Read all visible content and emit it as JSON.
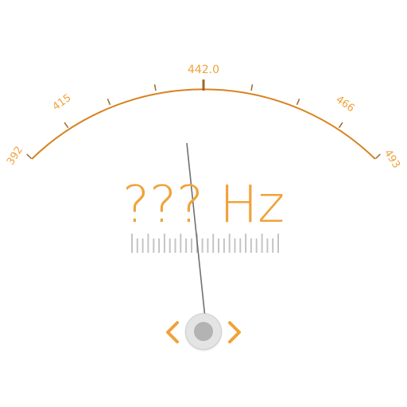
{
  "colors": {
    "accent": "#f0a23a",
    "scale_arc": "#d9821f",
    "needle": "#707070",
    "ruler": "#c4c4c4",
    "knob": "#e4e4e4",
    "knob_center": "#b3b3b3"
  },
  "gauge": {
    "labels": [
      {
        "value": "392",
        "angle": -55
      },
      {
        "value": "415",
        "angle": -36
      },
      {
        "value": "442.0",
        "angle": 0
      },
      {
        "value": "466",
        "angle": 36
      },
      {
        "value": "493",
        "angle": 55
      }
    ],
    "center_label": "442.0",
    "needle_angle": 5
  },
  "readout": {
    "value": "???",
    "unit": "Hz"
  },
  "controls": {
    "prev_icon": "chevron-left-icon",
    "next_icon": "chevron-right-icon",
    "knob_icon": "dial-knob-icon"
  }
}
